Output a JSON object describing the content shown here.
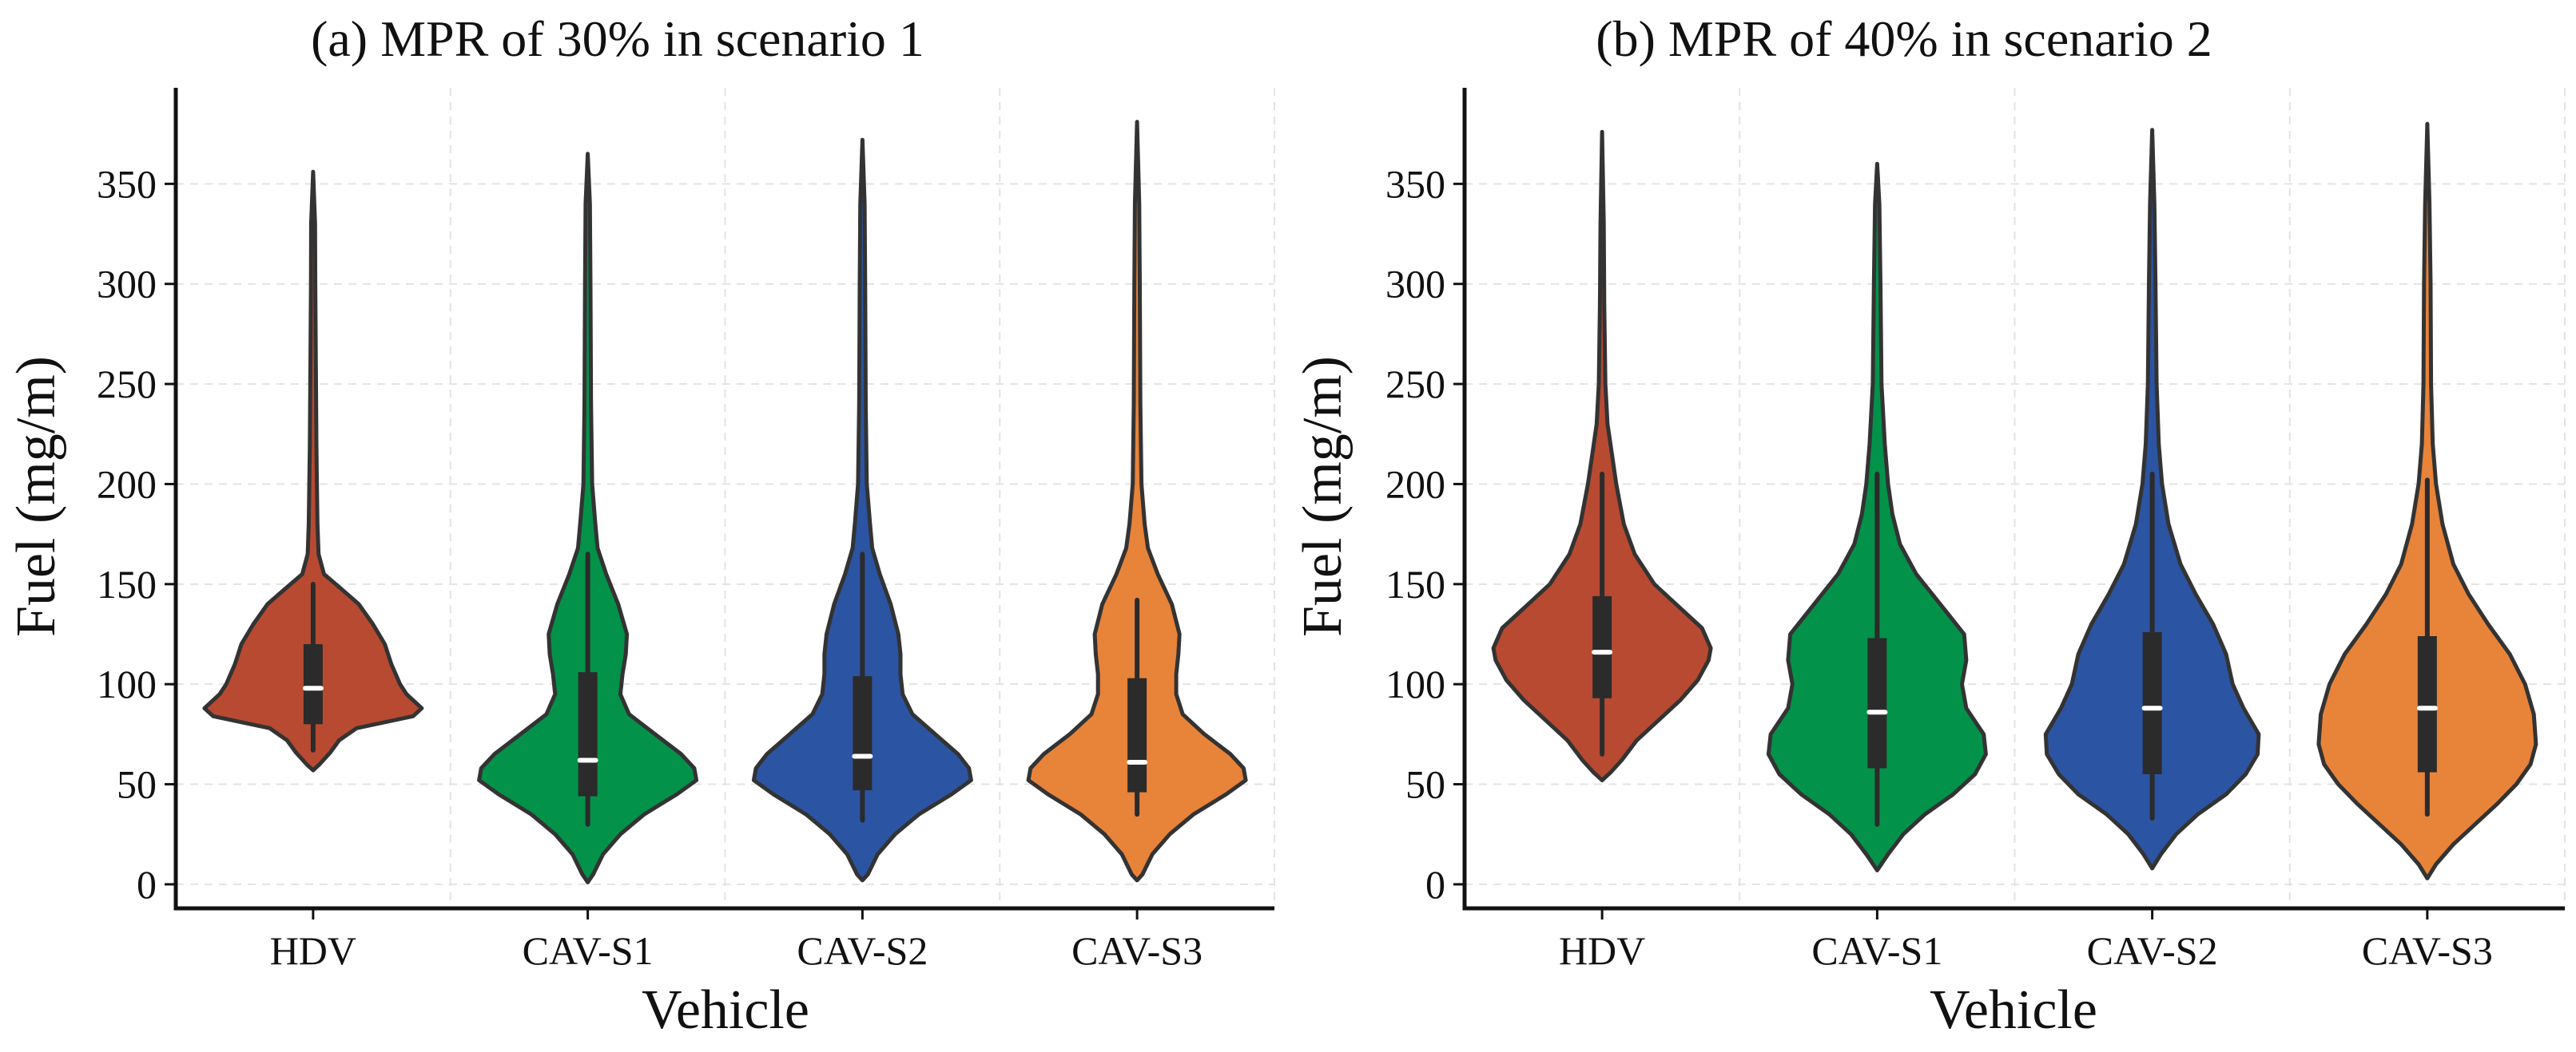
{
  "figure": {
    "ylabel": "Fuel (mg/m)",
    "xlabel": "Vehicle"
  },
  "chart_data": [
    {
      "type": "violin",
      "title": "(a) MPR of 30% in scenario 1",
      "xlabel": "Vehicle",
      "ylabel": "Fuel (mg/m)",
      "ylim": [
        -12,
        398
      ],
      "yticks": [
        0,
        50,
        100,
        150,
        200,
        250,
        300,
        350
      ],
      "grid": true,
      "categories": [
        "HDV",
        "CAV-S1",
        "CAV-S2",
        "CAV-S3"
      ],
      "colors": [
        "#b84a31",
        "#03924a",
        "#2b54a3",
        "#e8833a"
      ],
      "series": [
        {
          "name": "HDV",
          "min": 57,
          "whisker_low": 67,
          "q1": 80,
          "median": 98,
          "q3": 120,
          "whisker_high": 150,
          "max": 356,
          "density": [
            [
              57,
              0
            ],
            [
              60,
              0.06
            ],
            [
              66,
              0.16
            ],
            [
              72,
              0.24
            ],
            [
              78,
              0.4
            ],
            [
              84,
              0.92
            ],
            [
              88,
              1.0
            ],
            [
              95,
              0.86
            ],
            [
              100,
              0.8
            ],
            [
              110,
              0.72
            ],
            [
              120,
              0.66
            ],
            [
              130,
              0.55
            ],
            [
              140,
              0.42
            ],
            [
              148,
              0.25
            ],
            [
              155,
              0.1
            ],
            [
              165,
              0.05
            ],
            [
              180,
              0.04
            ],
            [
              200,
              0.035
            ],
            [
              220,
              0.03
            ],
            [
              260,
              0.025
            ],
            [
              300,
              0.02
            ],
            [
              330,
              0.018
            ],
            [
              356,
              0
            ]
          ]
        },
        {
          "name": "CAV-S1",
          "min": 1,
          "whisker_low": 30,
          "q1": 44,
          "median": 62,
          "q3": 106,
          "whisker_high": 165,
          "max": 365,
          "density": [
            [
              1,
              0
            ],
            [
              5,
              0.05
            ],
            [
              15,
              0.14
            ],
            [
              25,
              0.3
            ],
            [
              35,
              0.52
            ],
            [
              45,
              0.82
            ],
            [
              52,
              1.0
            ],
            [
              58,
              0.98
            ],
            [
              65,
              0.86
            ],
            [
              75,
              0.62
            ],
            [
              85,
              0.38
            ],
            [
              95,
              0.3
            ],
            [
              105,
              0.32
            ],
            [
              115,
              0.35
            ],
            [
              125,
              0.36
            ],
            [
              140,
              0.28
            ],
            [
              155,
              0.17
            ],
            [
              168,
              0.09
            ],
            [
              180,
              0.07
            ],
            [
              200,
              0.04
            ],
            [
              240,
              0.03
            ],
            [
              300,
              0.025
            ],
            [
              340,
              0.02
            ],
            [
              365,
              0
            ]
          ]
        },
        {
          "name": "CAV-S2",
          "min": 2,
          "whisker_low": 32,
          "q1": 47,
          "median": 64,
          "q3": 104,
          "whisker_high": 165,
          "max": 372,
          "density": [
            [
              2,
              0
            ],
            [
              5,
              0.05
            ],
            [
              15,
              0.14
            ],
            [
              25,
              0.3
            ],
            [
              35,
              0.52
            ],
            [
              45,
              0.82
            ],
            [
              52,
              1.0
            ],
            [
              58,
              0.98
            ],
            [
              65,
              0.88
            ],
            [
              75,
              0.67
            ],
            [
              85,
              0.46
            ],
            [
              95,
              0.37
            ],
            [
              105,
              0.35
            ],
            [
              115,
              0.35
            ],
            [
              125,
              0.33
            ],
            [
              140,
              0.26
            ],
            [
              155,
              0.16
            ],
            [
              168,
              0.09
            ],
            [
              180,
              0.07
            ],
            [
              200,
              0.04
            ],
            [
              240,
              0.03
            ],
            [
              300,
              0.025
            ],
            [
              340,
              0.02
            ],
            [
              372,
              0
            ]
          ]
        },
        {
          "name": "CAV-S3",
          "min": 2,
          "whisker_low": 35,
          "q1": 46,
          "median": 61,
          "q3": 103,
          "whisker_high": 142,
          "max": 381,
          "density": [
            [
              2,
              0
            ],
            [
              5,
              0.05
            ],
            [
              15,
              0.14
            ],
            [
              25,
              0.3
            ],
            [
              35,
              0.52
            ],
            [
              45,
              0.82
            ],
            [
              52,
              1.0
            ],
            [
              58,
              0.98
            ],
            [
              65,
              0.86
            ],
            [
              75,
              0.62
            ],
            [
              85,
              0.42
            ],
            [
              95,
              0.36
            ],
            [
              105,
              0.36
            ],
            [
              115,
              0.38
            ],
            [
              125,
              0.39
            ],
            [
              140,
              0.32
            ],
            [
              155,
              0.19
            ],
            [
              168,
              0.1
            ],
            [
              180,
              0.07
            ],
            [
              200,
              0.04
            ],
            [
              240,
              0.03
            ],
            [
              300,
              0.025
            ],
            [
              340,
              0.02
            ],
            [
              381,
              0
            ]
          ]
        }
      ]
    },
    {
      "type": "violin",
      "title": "(b) MPR of 40% in scenario 2",
      "xlabel": "Vehicle",
      "ylabel": "Fuel (mg/m)",
      "ylim": [
        -12,
        398
      ],
      "yticks": [
        0,
        50,
        100,
        150,
        200,
        250,
        300,
        350
      ],
      "grid": true,
      "categories": [
        "HDV",
        "CAV-S1",
        "CAV-S2",
        "CAV-S3"
      ],
      "colors": [
        "#b84a31",
        "#03924a",
        "#2b54a3",
        "#e8833a"
      ],
      "series": [
        {
          "name": "HDV",
          "min": 52,
          "whisker_low": 65,
          "q1": 93,
          "median": 116,
          "q3": 144,
          "whisker_high": 205,
          "max": 376,
          "density": [
            [
              52,
              0
            ],
            [
              56,
              0.08
            ],
            [
              62,
              0.18
            ],
            [
              72,
              0.32
            ],
            [
              82,
              0.52
            ],
            [
              92,
              0.72
            ],
            [
              102,
              0.88
            ],
            [
              112,
              0.98
            ],
            [
              118,
              1.0
            ],
            [
              128,
              0.92
            ],
            [
              138,
              0.72
            ],
            [
              150,
              0.48
            ],
            [
              165,
              0.3
            ],
            [
              180,
              0.2
            ],
            [
              200,
              0.13
            ],
            [
              215,
              0.09
            ],
            [
              230,
              0.05
            ],
            [
              250,
              0.03
            ],
            [
              290,
              0.02
            ],
            [
              330,
              0.015
            ],
            [
              376,
              0
            ]
          ]
        },
        {
          "name": "CAV-S1",
          "min": 7,
          "whisker_low": 30,
          "q1": 58,
          "median": 86,
          "q3": 123,
          "whisker_high": 205,
          "max": 360,
          "density": [
            [
              7,
              0
            ],
            [
              15,
              0.1
            ],
            [
              25,
              0.24
            ],
            [
              35,
              0.44
            ],
            [
              45,
              0.7
            ],
            [
              55,
              0.9
            ],
            [
              65,
              1.0
            ],
            [
              75,
              0.98
            ],
            [
              88,
              0.82
            ],
            [
              100,
              0.78
            ],
            [
              112,
              0.82
            ],
            [
              125,
              0.8
            ],
            [
              140,
              0.58
            ],
            [
              155,
              0.36
            ],
            [
              170,
              0.21
            ],
            [
              185,
              0.14
            ],
            [
              200,
              0.1
            ],
            [
              220,
              0.07
            ],
            [
              250,
              0.04
            ],
            [
              300,
              0.03
            ],
            [
              340,
              0.02
            ],
            [
              360,
              0
            ]
          ]
        },
        {
          "name": "CAV-S2",
          "min": 8,
          "whisker_low": 33,
          "q1": 55,
          "median": 88,
          "q3": 126,
          "whisker_high": 205,
          "max": 377,
          "density": [
            [
              8,
              0
            ],
            [
              15,
              0.08
            ],
            [
              25,
              0.22
            ],
            [
              35,
              0.42
            ],
            [
              45,
              0.68
            ],
            [
              55,
              0.86
            ],
            [
              65,
              0.97
            ],
            [
              75,
              0.98
            ],
            [
              88,
              0.84
            ],
            [
              100,
              0.74
            ],
            [
              115,
              0.68
            ],
            [
              130,
              0.56
            ],
            [
              145,
              0.4
            ],
            [
              160,
              0.26
            ],
            [
              180,
              0.15
            ],
            [
              200,
              0.09
            ],
            [
              220,
              0.06
            ],
            [
              250,
              0.04
            ],
            [
              300,
              0.03
            ],
            [
              340,
              0.02
            ],
            [
              377,
              0
            ]
          ]
        },
        {
          "name": "CAV-S3",
          "min": 3,
          "whisker_low": 35,
          "q1": 56,
          "median": 88,
          "q3": 124,
          "whisker_high": 202,
          "max": 380,
          "density": [
            [
              3,
              0
            ],
            [
              10,
              0.08
            ],
            [
              20,
              0.24
            ],
            [
              30,
              0.44
            ],
            [
              40,
              0.64
            ],
            [
              50,
              0.82
            ],
            [
              60,
              0.95
            ],
            [
              70,
              1.0
            ],
            [
              85,
              0.98
            ],
            [
              100,
              0.9
            ],
            [
              115,
              0.76
            ],
            [
              130,
              0.56
            ],
            [
              145,
              0.38
            ],
            [
              160,
              0.24
            ],
            [
              180,
              0.14
            ],
            [
              200,
              0.08
            ],
            [
              220,
              0.05
            ],
            [
              250,
              0.035
            ],
            [
              300,
              0.03
            ],
            [
              340,
              0.02
            ],
            [
              380,
              0
            ]
          ]
        }
      ]
    }
  ]
}
